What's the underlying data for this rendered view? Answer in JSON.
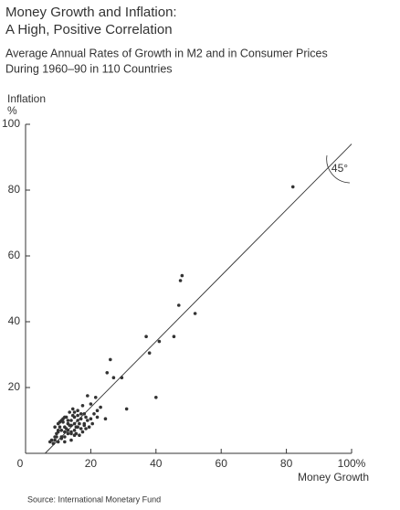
{
  "chart_data": {
    "type": "scatter",
    "title": [
      "Money Growth and Inflation:",
      "A High, Positive Correlation"
    ],
    "subtitle": [
      "Average Annual Rates of Growth in M2 and in Consumer Prices",
      "During 1960–90 in 110 Countries"
    ],
    "ylabel": [
      "Inflation",
      "%"
    ],
    "xlabel": "Money Growth",
    "source": "Source: International Monetary Fund",
    "annotation": "45°",
    "color": "#333333",
    "xlim": [
      0,
      100
    ],
    "ylim": [
      0,
      100
    ],
    "xticks": [
      0,
      20,
      40,
      60,
      80,
      {
        "value": 100,
        "label": "100%"
      }
    ],
    "yticks": [
      20,
      40,
      60,
      80,
      100
    ],
    "reference_line": {
      "x": [
        6,
        100
      ],
      "y": [
        0,
        94
      ]
    },
    "x": [
      82,
      48,
      47.5,
      47,
      52,
      37,
      41,
      45.5,
      38,
      40,
      31,
      27,
      29.5,
      26,
      25,
      24.5,
      21.5,
      22,
      19,
      20,
      23,
      18,
      17.5,
      16,
      15,
      17,
      18.5,
      16.5,
      14,
      15.5,
      13,
      12,
      11,
      10,
      9,
      8,
      7.5,
      9.5,
      10.5,
      11.5,
      12.5,
      13.5,
      14.5,
      15,
      16,
      17,
      18,
      19,
      20,
      21,
      13,
      12,
      11,
      10,
      9,
      14,
      15,
      16,
      17,
      18,
      12.5,
      11.5,
      10.5,
      13.5,
      14.5,
      15.5,
      16.5,
      8.5,
      9,
      10,
      11,
      12,
      13,
      14,
      15,
      19.5,
      20.5,
      22,
      17.5,
      18.5,
      10,
      11,
      12,
      13,
      14,
      15,
      16,
      9.5,
      12,
      14
    ],
    "values": [
      81,
      54,
      52.5,
      45,
      42.5,
      35.5,
      34,
      35.5,
      30.5,
      17,
      13.5,
      23,
      23,
      28.5,
      24.5,
      10.5,
      17,
      13,
      17.5,
      15,
      14,
      12,
      14.5,
      13,
      11,
      10.5,
      11,
      9,
      10,
      8,
      9,
      8,
      7,
      6.5,
      5,
      4,
      3.5,
      6,
      8,
      9.5,
      7.5,
      8.5,
      11.5,
      9,
      10,
      12,
      8.5,
      10,
      10.5,
      12,
      6,
      5,
      4.5,
      7,
      8,
      6.5,
      7,
      8,
      7.5,
      9,
      11,
      10.5,
      9.5,
      12.5,
      13.5,
      6,
      5.5,
      3,
      4,
      3.5,
      5,
      6.5,
      7,
      8.5,
      5.5,
      8,
      9,
      11,
      6.5,
      7.5,
      9,
      10,
      11,
      10,
      6,
      12.5,
      11.5,
      5,
      3.5,
      4
    ]
  }
}
